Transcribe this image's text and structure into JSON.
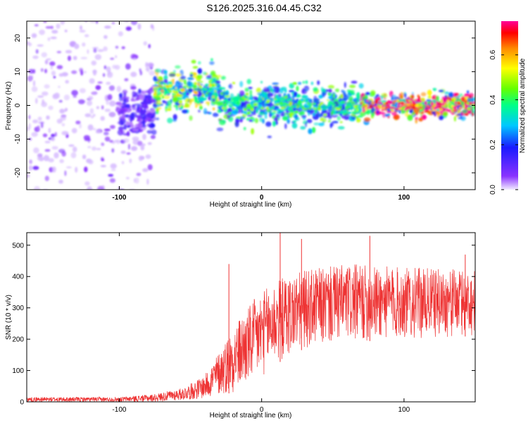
{
  "title": "S126.2025.316.04.45.C32",
  "chart_data": [
    {
      "type": "heatmap",
      "xlabel": "Height of straight line (km)",
      "ylabel": "Frequency (Hz)",
      "xlim": [
        -165,
        150
      ],
      "ylim": [
        -25,
        25
      ],
      "x_ticks": [
        -100,
        0,
        100
      ],
      "y_ticks": [
        -20,
        -10,
        0,
        10,
        20
      ],
      "colorbar": {
        "label": "Normalized spectral amplitude",
        "range": [
          0.0,
          0.75
        ],
        "ticks": [
          "0.0",
          "0.2",
          "0.4",
          "0.6"
        ],
        "tick_values": [
          0.0,
          0.2,
          0.4,
          0.6
        ]
      },
      "regions": [
        {
          "x_range": [
            -165,
            -75
          ],
          "freq_center": 0,
          "freq_spread": 25,
          "amplitude": 0.05
        },
        {
          "x_range": [
            -100,
            -75
          ],
          "freq_center": -2,
          "freq_spread": 6,
          "amplitude": 0.1
        },
        {
          "x_range": [
            -75,
            -30
          ],
          "freq_center": 4,
          "freq_spread": 6,
          "amplitude": 0.35
        },
        {
          "x_range": [
            -30,
            70
          ],
          "freq_center": 0,
          "freq_spread": 5,
          "amplitude": 0.3
        },
        {
          "x_range": [
            70,
            150
          ],
          "freq_center": 0,
          "freq_spread": 3,
          "amplitude": 0.55
        }
      ]
    },
    {
      "type": "line",
      "xlabel": "Height of straight line (km)",
      "ylabel": "SNR (10 * v/v)",
      "xlim": [
        -165,
        150
      ],
      "ylim": [
        0,
        540
      ],
      "x_ticks": [
        -100,
        0,
        100
      ],
      "y_ticks": [
        0,
        100,
        200,
        300,
        400,
        500
      ],
      "color": "#ee3333",
      "envelope": [
        {
          "x": -165,
          "low": 0,
          "high": 15
        },
        {
          "x": -100,
          "low": 0,
          "high": 15
        },
        {
          "x": -75,
          "low": 0,
          "high": 25
        },
        {
          "x": -55,
          "low": 5,
          "high": 45
        },
        {
          "x": -40,
          "low": 10,
          "high": 85
        },
        {
          "x": -30,
          "low": 20,
          "high": 160
        },
        {
          "x": -20,
          "low": 30,
          "high": 240
        },
        {
          "x": -5,
          "low": 60,
          "high": 330
        },
        {
          "x": 10,
          "low": 120,
          "high": 390
        },
        {
          "x": 30,
          "low": 170,
          "high": 420
        },
        {
          "x": 60,
          "low": 190,
          "high": 440
        },
        {
          "x": 100,
          "low": 200,
          "high": 430
        },
        {
          "x": 150,
          "low": 210,
          "high": 420
        }
      ],
      "spikes": [
        {
          "x": -23,
          "y": 440
        },
        {
          "x": 13,
          "y": 540
        },
        {
          "x": 28,
          "y": 520
        },
        {
          "x": 76,
          "y": 530
        },
        {
          "x": 143,
          "y": 470
        }
      ]
    }
  ]
}
